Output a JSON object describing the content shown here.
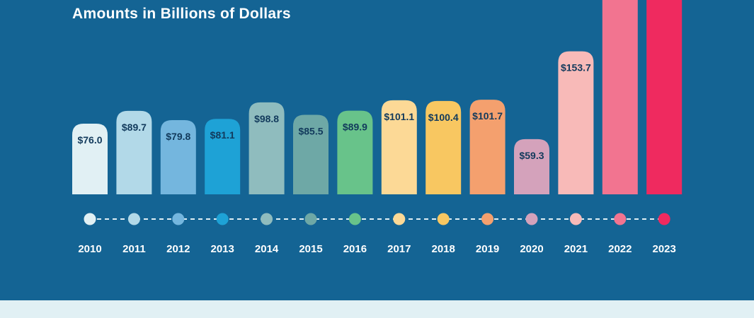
{
  "chart_data": {
    "type": "bar",
    "title": "Amounts in Billions of Dollars",
    "categories": [
      "2010",
      "2011",
      "2012",
      "2013",
      "2014",
      "2015",
      "2016",
      "2017",
      "2018",
      "2019",
      "2020",
      "2021",
      "2022",
      "2023"
    ],
    "values": [
      76.0,
      89.7,
      79.8,
      81.1,
      98.8,
      85.5,
      89.9,
      101.1,
      100.4,
      101.7,
      59.3,
      153.7,
      null,
      null
    ],
    "value_labels": [
      "$76.0",
      "$89.7",
      "$79.8",
      "$81.1",
      "$98.8",
      "$85.5",
      "$89.9",
      "$101.1",
      "$100.4",
      "$101.7",
      "$59.3",
      "$153.7",
      "",
      ""
    ],
    "colors": [
      "#e1f0f4",
      "#b2d9e8",
      "#74b6de",
      "#1ea2d6",
      "#8fbcbe",
      "#6ea8a6",
      "#68c38a",
      "#fcd996",
      "#f8c761",
      "#f4a06e",
      "#d4a2bb",
      "#f8bab8",
      "#f27490",
      "#ef2a5f"
    ],
    "label_color": "#123a5c",
    "xlabel": "",
    "ylabel": "",
    "grid": false,
    "legend": "none"
  },
  "footer_color": "#e1f0f4",
  "timeline_line_color": "#e1f0f4"
}
